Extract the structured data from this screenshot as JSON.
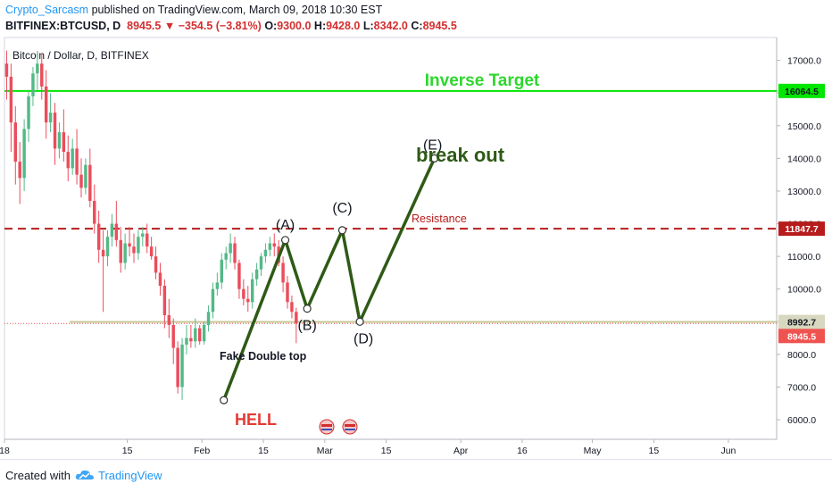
{
  "header": {
    "author": "Crypto_Sarcasm",
    "published": " published on TradingView.com, March 09, 2018 10:30 EST",
    "symbol": "BITFINEX:BTCUSD, D",
    "last": "8945.5",
    "change": "−354.5 (−3.81%)",
    "o_label": "O:",
    "o": "9300.0",
    "h_label": "H:",
    "h": "9428.0",
    "l_label": "L:",
    "l": "8342.0",
    "c_label": "C:",
    "c": "8945.5"
  },
  "chart_data": {
    "type": "candlestick",
    "title": "Bitcoin / Dollar, D, BITFINEX",
    "y_axis": {
      "min": 5400,
      "max": 17700,
      "ticks": [
        6000,
        7000,
        8000,
        9000,
        10000,
        11000,
        12000,
        13000,
        14000,
        15000,
        16000,
        17000
      ]
    },
    "x_axis": {
      "start": "2017-12-18",
      "end": "2018-06-12",
      "labels": [
        {
          "date": "2017-12-18",
          "text": "18"
        },
        {
          "date": "2018-01-15",
          "text": "15"
        },
        {
          "date": "2018-02-01",
          "text": "Feb"
        },
        {
          "date": "2018-02-15",
          "text": "15"
        },
        {
          "date": "2018-03-01",
          "text": "Mar"
        },
        {
          "date": "2018-03-15",
          "text": "15"
        },
        {
          "date": "2018-04-01",
          "text": "Apr"
        },
        {
          "date": "2018-04-15",
          "text": "16"
        },
        {
          "date": "2018-05-01",
          "text": "May"
        },
        {
          "date": "2018-05-15",
          "text": "15"
        },
        {
          "date": "2018-06-01",
          "text": "Jun"
        }
      ]
    },
    "candles": [
      [
        16900,
        17300,
        15800,
        16500
      ],
      [
        16500,
        16900,
        14200,
        15100
      ],
      [
        15100,
        15600,
        13200,
        13900
      ],
      [
        13900,
        14500,
        12600,
        13400
      ],
      [
        13400,
        15200,
        13000,
        14900
      ],
      [
        14900,
        16100,
        14500,
        15900
      ],
      [
        15900,
        16800,
        15600,
        16600
      ],
      [
        16600,
        17200,
        16100,
        16900
      ],
      [
        16900,
        17200,
        15800,
        16200
      ],
      [
        16200,
        16700,
        14600,
        15100
      ],
      [
        15100,
        16000,
        14800,
        15400
      ],
      [
        15400,
        15700,
        13800,
        14300
      ],
      [
        14300,
        15100,
        14000,
        14800
      ],
      [
        14800,
        15500,
        13900,
        14200
      ],
      [
        14200,
        14700,
        13300,
        13700
      ],
      [
        13700,
        14600,
        13500,
        14300
      ],
      [
        14300,
        14900,
        13200,
        13500
      ],
      [
        13500,
        14000,
        12800,
        13100
      ],
      [
        13100,
        14000,
        12900,
        13800
      ],
      [
        13800,
        14300,
        12500,
        12700
      ],
      [
        12700,
        13200,
        11700,
        12000
      ],
      [
        12000,
        12400,
        10800,
        11200
      ],
      [
        11200,
        11800,
        9300,
        11000
      ],
      [
        11000,
        11800,
        10700,
        11600
      ],
      [
        11600,
        12300,
        11300,
        12000
      ],
      [
        12000,
        12700,
        11300,
        11500
      ],
      [
        11500,
        11900,
        10500,
        10800
      ],
      [
        10800,
        11700,
        10600,
        11400
      ],
      [
        11400,
        11900,
        11000,
        11300
      ],
      [
        11300,
        11700,
        10800,
        11100
      ],
      [
        11100,
        11800,
        10900,
        11600
      ],
      [
        11600,
        11900,
        11300,
        11700
      ],
      [
        11700,
        12000,
        11100,
        11300
      ],
      [
        11300,
        11600,
        10900,
        11000
      ],
      [
        11000,
        11300,
        10300,
        10500
      ],
      [
        10500,
        10800,
        9800,
        10100
      ],
      [
        10100,
        10300,
        8800,
        9200
      ],
      [
        9200,
        9700,
        8500,
        8900
      ],
      [
        8900,
        9100,
        7700,
        8200
      ],
      [
        8200,
        8400,
        6800,
        7000
      ],
      [
        7000,
        8500,
        6600,
        8300
      ],
      [
        8300,
        8900,
        8000,
        8500
      ],
      [
        8500,
        8900,
        8200,
        8400
      ],
      [
        8400,
        9100,
        8200,
        8800
      ],
      [
        8800,
        8900,
        8300,
        8400
      ],
      [
        8400,
        9000,
        8300,
        8900
      ],
      [
        8900,
        9500,
        8700,
        9300
      ],
      [
        9300,
        10200,
        9100,
        10000
      ],
      [
        10000,
        10500,
        9800,
        10200
      ],
      [
        10200,
        11100,
        10000,
        10900
      ],
      [
        10900,
        11300,
        10600,
        11100
      ],
      [
        11100,
        11700,
        10800,
        11400
      ],
      [
        11400,
        11600,
        10600,
        10800
      ],
      [
        10800,
        10900,
        9700,
        10000
      ],
      [
        10000,
        10300,
        9500,
        9700
      ],
      [
        9700,
        10100,
        9300,
        9600
      ],
      [
        9600,
        10500,
        9400,
        10300
      ],
      [
        10300,
        10800,
        10100,
        10600
      ],
      [
        10600,
        11100,
        10400,
        11000
      ],
      [
        11000,
        11400,
        10800,
        11200
      ],
      [
        11200,
        11600,
        11000,
        11400
      ],
      [
        11400,
        11700,
        11000,
        11300
      ],
      [
        11300,
        11500,
        10700,
        10800
      ],
      [
        10800,
        11000,
        9900,
        10200
      ],
      [
        10200,
        10400,
        9400,
        9600
      ],
      [
        9600,
        9800,
        9100,
        9300
      ],
      [
        9300,
        9428,
        8342,
        8945.5
      ]
    ],
    "levels": [
      {
        "name": "inverse-target",
        "value": 16064.5,
        "label": "16064.5",
        "color": "#00e600"
      },
      {
        "name": "resistance",
        "value": 11847.7,
        "label": "11847.7",
        "color": "#b71c1c"
      },
      {
        "name": "support",
        "value": 8992.7,
        "label": "8992.7",
        "color": "#c8c89a"
      },
      {
        "name": "last-price",
        "value": 8945.5,
        "label": "8945.5",
        "color": "#ef5350"
      }
    ],
    "wave": [
      {
        "date": "2018-02-06",
        "value": 6600,
        "label": ""
      },
      {
        "date": "2018-02-20",
        "value": 11500,
        "label": "(A)"
      },
      {
        "date": "2018-02-25",
        "value": 9400,
        "label": "(B)"
      },
      {
        "date": "2018-03-05",
        "value": 11800,
        "label": "(C)"
      },
      {
        "date": "2018-03-09",
        "value": 9000,
        "label": "(D)"
      },
      {
        "date": "2018-03-26",
        "value": 14000,
        "label": "(E)"
      }
    ],
    "annotations": {
      "inverse_target": "Inverse Target",
      "break_out": "break out",
      "resistance": "Resistance",
      "fake_double_top": "Fake Double top",
      "hell": "HELL"
    }
  },
  "footer": {
    "created_with": "Created with",
    "brand": "TradingView"
  }
}
